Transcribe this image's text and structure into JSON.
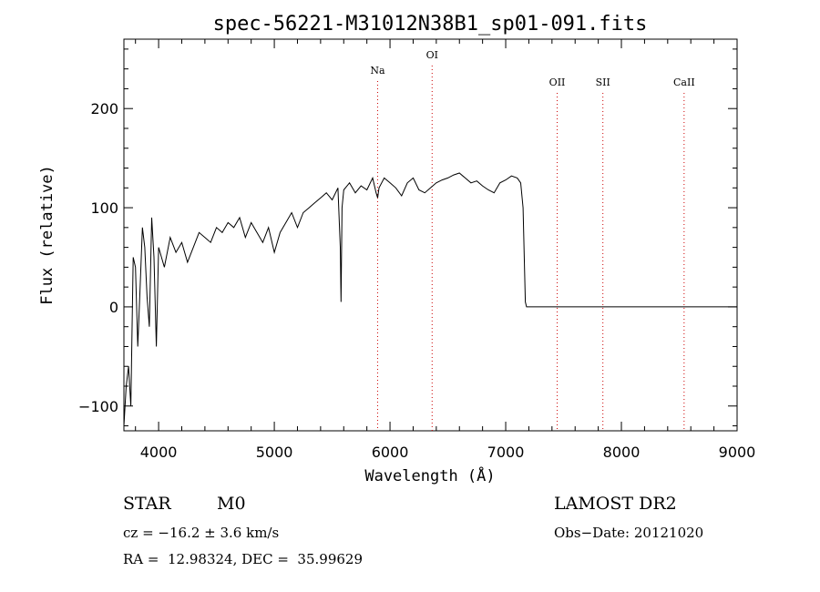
{
  "chart_data": {
    "type": "line",
    "title": "spec-56221-M31012N38B1_sp01-091.fits",
    "xlabel": "Wavelength (Å)",
    "ylabel": "Flux (relative)",
    "xlim": [
      3700,
      9000
    ],
    "ylim": [
      -125,
      270
    ],
    "xticks": [
      4000,
      5000,
      6000,
      7000,
      8000,
      9000
    ],
    "yticks": [
      -100,
      0,
      100,
      200
    ],
    "x_tick_labels": [
      "4000",
      "5000",
      "6000",
      "7000",
      "8000",
      "9000"
    ],
    "y_tick_labels": [
      "−100",
      "0",
      "100",
      "200"
    ],
    "grid": false,
    "line_color": "#000000",
    "marker_color": "#cc0000",
    "spectral_lines": [
      {
        "name": "Na",
        "wavelength": 5893
      },
      {
        "name": "OI",
        "wavelength": 6364
      },
      {
        "name": "OII",
        "wavelength": 7445
      },
      {
        "name": "SII",
        "wavelength": 7840
      },
      {
        "name": "CaII",
        "wavelength": 8542
      }
    ],
    "series": [
      {
        "x": [
          3700,
          3720,
          3740,
          3760,
          3780,
          3800,
          3820,
          3840,
          3860,
          3880,
          3900,
          3920,
          3940,
          3960,
          3980,
          4000,
          4050,
          4100,
          4150,
          4200,
          4250,
          4300,
          4350,
          4400,
          4450,
          4500,
          4550,
          4600,
          4650,
          4700,
          4750,
          4800,
          4850,
          4900,
          4950,
          5000,
          5050,
          5100,
          5150,
          5200,
          5250,
          5300,
          5350,
          5400,
          5450,
          5500,
          5550,
          5570,
          5577,
          5585,
          5600,
          5650,
          5700,
          5750,
          5800,
          5850,
          5880,
          5893,
          5905,
          5950,
          6000,
          6050,
          6100,
          6150,
          6200,
          6250,
          6300,
          6350,
          6400,
          6450,
          6500,
          6550,
          6600,
          6650,
          6700,
          6750,
          6800,
          6850,
          6900,
          6950,
          7000,
          7050,
          7100,
          7130,
          7150,
          7160,
          7170,
          7180,
          7200,
          7500,
          8000,
          8500,
          9000
        ],
        "y": [
          -120,
          -80,
          -60,
          -100,
          50,
          40,
          -40,
          20,
          80,
          60,
          10,
          -20,
          90,
          50,
          -40,
          60,
          40,
          70,
          55,
          65,
          45,
          60,
          75,
          70,
          65,
          80,
          75,
          85,
          80,
          90,
          70,
          85,
          75,
          65,
          80,
          55,
          75,
          85,
          95,
          80,
          95,
          100,
          105,
          110,
          115,
          108,
          120,
          60,
          5,
          100,
          118,
          125,
          115,
          122,
          118,
          130,
          115,
          110,
          120,
          130,
          125,
          120,
          112,
          125,
          130,
          118,
          115,
          120,
          125,
          128,
          130,
          133,
          135,
          130,
          125,
          127,
          122,
          118,
          115,
          125,
          128,
          132,
          130,
          125,
          100,
          50,
          5,
          0,
          0,
          0,
          0,
          0,
          0
        ]
      }
    ]
  },
  "footer": {
    "object_type": "STAR",
    "subclass": "M0",
    "survey": "LAMOST DR2",
    "redshift": "cz = −16.2 ± 3.6 km/s",
    "obs_date": "Obs−Date: 20121020",
    "coordinates": "RA =  12.98324, DEC =  35.99629"
  }
}
